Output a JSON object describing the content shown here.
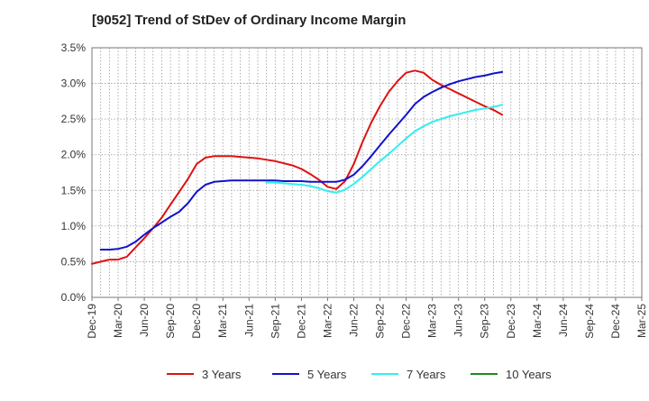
{
  "chart_data": {
    "type": "line",
    "title": "[9052]  Trend of StDev of Ordinary Income Margin",
    "xlabel": "",
    "ylabel": "",
    "x_ticks": [
      "Dec-19",
      "Mar-20",
      "Jun-20",
      "Sep-20",
      "Dec-20",
      "Mar-21",
      "Jun-21",
      "Sep-21",
      "Dec-21",
      "Mar-22",
      "Jun-22",
      "Sep-22",
      "Dec-22",
      "Mar-23",
      "Jun-23",
      "Sep-23",
      "Dec-23",
      "Mar-24",
      "Jun-24",
      "Sep-24",
      "Dec-24",
      "Mar-25"
    ],
    "y_ticks": [
      "0.0%",
      "0.5%",
      "1.0%",
      "1.5%",
      "2.0%",
      "2.5%",
      "3.0%",
      "3.5%"
    ],
    "ylim": [
      0,
      3.5
    ],
    "grid": true,
    "legend_position": "bottom",
    "series": [
      {
        "name": "3 Years",
        "color": "#dd1111",
        "values": [
          0.47,
          0.5,
          0.53,
          0.53,
          0.57,
          0.7,
          0.83,
          0.97,
          1.12,
          1.3,
          1.48,
          1.66,
          1.87,
          1.96,
          1.98,
          1.98,
          1.98,
          1.97,
          1.96,
          1.95,
          1.93,
          1.91,
          1.88,
          1.85,
          1.8,
          1.73,
          1.65,
          1.55,
          1.52,
          1.63,
          1.87,
          2.18,
          2.45,
          2.68,
          2.88,
          3.03,
          3.15,
          3.18,
          3.15,
          3.05,
          2.98,
          2.92,
          2.86,
          2.8,
          2.74,
          2.68,
          2.63,
          2.56
        ]
      },
      {
        "name": "5 Years",
        "color": "#1111cc",
        "values": [
          null,
          0.67,
          0.67,
          0.68,
          0.71,
          0.78,
          0.88,
          0.97,
          1.05,
          1.13,
          1.2,
          1.32,
          1.48,
          1.58,
          1.62,
          1.63,
          1.64,
          1.64,
          1.64,
          1.64,
          1.64,
          1.64,
          1.63,
          1.63,
          1.63,
          1.62,
          1.62,
          1.62,
          1.62,
          1.65,
          1.72,
          1.84,
          1.98,
          2.13,
          2.28,
          2.42,
          2.56,
          2.71,
          2.81,
          2.88,
          2.94,
          2.99,
          3.03,
          3.06,
          3.09,
          3.11,
          3.14,
          3.16
        ]
      },
      {
        "name": "7 Years",
        "color": "#33eeee",
        "values": [
          null,
          null,
          null,
          null,
          null,
          null,
          null,
          null,
          null,
          null,
          null,
          null,
          null,
          null,
          null,
          null,
          null,
          null,
          null,
          null,
          1.61,
          1.61,
          1.6,
          1.59,
          1.58,
          1.56,
          1.53,
          1.49,
          1.47,
          1.51,
          1.59,
          1.69,
          1.8,
          1.91,
          2.01,
          2.12,
          2.23,
          2.33,
          2.4,
          2.46,
          2.5,
          2.54,
          2.57,
          2.6,
          2.63,
          2.65,
          2.67,
          2.7
        ]
      },
      {
        "name": "10 Years",
        "color": "#228822",
        "values": []
      }
    ]
  }
}
